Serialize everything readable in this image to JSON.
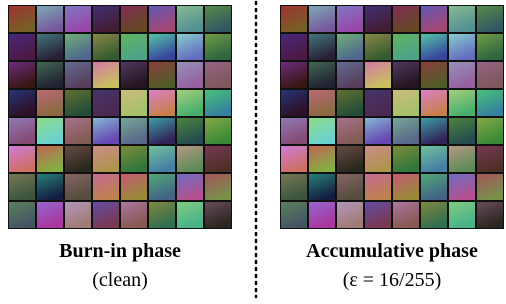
{
  "panels": [
    {
      "title": "Burn-in phase",
      "subtitle": "(clean)"
    },
    {
      "title": "Accumulative phase",
      "subtitle": "(ε = 16/255)"
    }
  ]
}
